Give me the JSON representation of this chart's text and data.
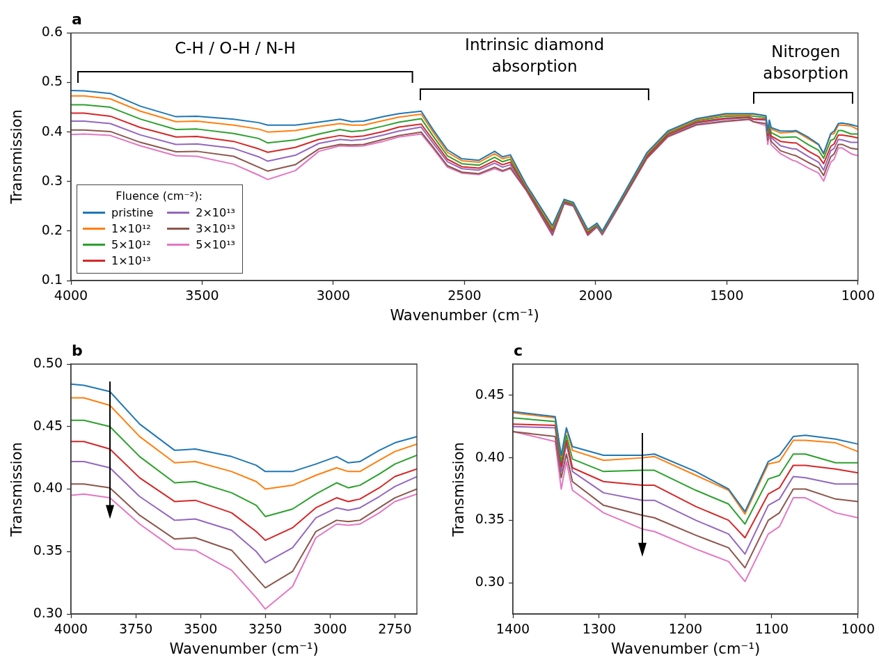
{
  "chart_data": [
    {
      "type": "line",
      "title": "a",
      "xlabel": "Wavenumber (cm⁻¹)",
      "ylabel": "Transmission",
      "legend": "bottom left",
      "legend_title": "Fluence (cm⁻²):",
      "xlim": [
        4000,
        1000
      ],
      "xticks": [
        4000,
        3500,
        3000,
        2500,
        2000,
        1500,
        1000
      ],
      "ylim": [
        0.1,
        0.6
      ],
      "yticks": [
        0.1,
        0.2,
        0.3,
        0.4,
        0.5,
        0.6
      ],
      "annotations": [
        "C-H / O-H / N-H",
        "Intrinsic diamond absorption",
        "Nitrogen absorption"
      ],
      "x": [
        4000,
        3950,
        3850,
        3735,
        3600,
        3520,
        3380,
        3285,
        3250,
        3145,
        3055,
        2975,
        2930,
        2885,
        2810,
        2750,
        2665,
        2620,
        2565,
        2510,
        2445,
        2385,
        2355,
        2325,
        2265,
        2165,
        2120,
        2085,
        2030,
        1995,
        1975,
        1905,
        1805,
        1725,
        1615,
        1505,
        1415,
        1400,
        1351,
        1344,
        1338,
        1331,
        1295,
        1250,
        1236,
        1188,
        1150,
        1131,
        1104,
        1091,
        1075,
        1061,
        1026,
        1000
      ],
      "series": [
        {
          "name": "pristine",
          "color": "#1f77b4",
          "values": [
            0.484,
            0.483,
            0.478,
            0.452,
            0.431,
            0.432,
            0.426,
            0.419,
            0.414,
            0.414,
            0.42,
            0.426,
            0.421,
            0.422,
            0.431,
            0.437,
            0.442,
            0.405,
            0.364,
            0.346,
            0.343,
            0.361,
            0.35,
            0.354,
            0.294,
            0.211,
            0.264,
            0.258,
            0.203,
            0.216,
            0.2,
            0.264,
            0.358,
            0.402,
            0.427,
            0.437,
            0.437,
            0.437,
            0.433,
            0.402,
            0.424,
            0.409,
            0.402,
            0.402,
            0.403,
            0.389,
            0.375,
            0.357,
            0.397,
            0.402,
            0.417,
            0.418,
            0.415,
            0.411
          ]
        },
        {
          "name": "1×10¹²",
          "color": "#ff7f0e",
          "values": [
            0.473,
            0.473,
            0.467,
            0.442,
            0.421,
            0.422,
            0.414,
            0.406,
            0.4,
            0.403,
            0.411,
            0.417,
            0.414,
            0.414,
            0.423,
            0.43,
            0.436,
            0.4,
            0.359,
            0.342,
            0.339,
            0.356,
            0.346,
            0.35,
            0.292,
            0.208,
            0.263,
            0.257,
            0.201,
            0.215,
            0.199,
            0.263,
            0.356,
            0.4,
            0.425,
            0.435,
            0.435,
            0.436,
            0.432,
            0.401,
            0.423,
            0.406,
            0.398,
            0.4,
            0.401,
            0.386,
            0.374,
            0.355,
            0.395,
            0.397,
            0.414,
            0.414,
            0.412,
            0.405
          ]
        },
        {
          "name": "5×10¹²",
          "color": "#2ca02c",
          "values": [
            0.455,
            0.455,
            0.45,
            0.426,
            0.405,
            0.406,
            0.397,
            0.387,
            0.378,
            0.384,
            0.396,
            0.405,
            0.401,
            0.403,
            0.412,
            0.42,
            0.427,
            0.392,
            0.352,
            0.336,
            0.333,
            0.349,
            0.34,
            0.345,
            0.29,
            0.204,
            0.261,
            0.255,
            0.199,
            0.213,
            0.197,
            0.261,
            0.354,
            0.398,
            0.423,
            0.432,
            0.433,
            0.432,
            0.429,
            0.397,
            0.418,
            0.399,
            0.389,
            0.39,
            0.39,
            0.374,
            0.363,
            0.347,
            0.383,
            0.386,
            0.403,
            0.403,
            0.396,
            0.396
          ]
        },
        {
          "name": "1×10¹³",
          "color": "#d62728",
          "values": [
            0.438,
            0.438,
            0.432,
            0.409,
            0.39,
            0.391,
            0.381,
            0.366,
            0.359,
            0.369,
            0.385,
            0.393,
            0.39,
            0.392,
            0.401,
            0.41,
            0.416,
            0.384,
            0.345,
            0.33,
            0.327,
            0.342,
            0.334,
            0.339,
            0.287,
            0.2,
            0.259,
            0.254,
            0.196,
            0.212,
            0.196,
            0.259,
            0.351,
            0.395,
            0.42,
            0.428,
            0.43,
            0.427,
            0.426,
            0.393,
            0.414,
            0.392,
            0.381,
            0.378,
            0.378,
            0.361,
            0.35,
            0.336,
            0.371,
            0.376,
            0.394,
            0.394,
            0.391,
            0.388
          ]
        },
        {
          "name": "2×10¹³",
          "color": "#9467bd",
          "values": [
            0.422,
            0.422,
            0.417,
            0.394,
            0.375,
            0.376,
            0.367,
            0.35,
            0.341,
            0.353,
            0.377,
            0.385,
            0.383,
            0.385,
            0.394,
            0.402,
            0.41,
            0.378,
            0.34,
            0.326,
            0.323,
            0.337,
            0.329,
            0.334,
            0.286,
            0.197,
            0.258,
            0.252,
            0.195,
            0.21,
            0.194,
            0.258,
            0.35,
            0.394,
            0.418,
            0.426,
            0.429,
            0.425,
            0.424,
            0.389,
            0.411,
            0.389,
            0.372,
            0.366,
            0.366,
            0.35,
            0.339,
            0.323,
            0.362,
            0.367,
            0.385,
            0.384,
            0.379,
            0.379
          ]
        },
        {
          "name": "3×10¹³",
          "color": "#8c564b",
          "values": [
            0.404,
            0.404,
            0.401,
            0.379,
            0.36,
            0.361,
            0.351,
            0.329,
            0.321,
            0.334,
            0.366,
            0.375,
            0.374,
            0.375,
            0.385,
            0.393,
            0.4,
            0.37,
            0.332,
            0.319,
            0.316,
            0.329,
            0.322,
            0.328,
            0.283,
            0.193,
            0.256,
            0.251,
            0.192,
            0.209,
            0.193,
            0.256,
            0.347,
            0.391,
            0.415,
            0.422,
            0.426,
            0.421,
            0.417,
            0.384,
            0.403,
            0.381,
            0.362,
            0.354,
            0.352,
            0.338,
            0.328,
            0.312,
            0.35,
            0.356,
            0.375,
            0.375,
            0.367,
            0.365
          ]
        },
        {
          "name": "5×10¹³",
          "color": "#e377c2",
          "values": [
            0.395,
            0.396,
            0.393,
            0.372,
            0.352,
            0.351,
            0.335,
            0.313,
            0.304,
            0.322,
            0.361,
            0.372,
            0.371,
            0.372,
            0.381,
            0.39,
            0.396,
            0.367,
            0.329,
            0.317,
            0.314,
            0.326,
            0.32,
            0.326,
            0.282,
            0.191,
            0.255,
            0.25,
            0.191,
            0.208,
            0.192,
            0.255,
            0.346,
            0.39,
            0.414,
            0.421,
            0.425,
            0.421,
            0.413,
            0.375,
            0.397,
            0.374,
            0.356,
            0.343,
            0.341,
            0.327,
            0.317,
            0.301,
            0.339,
            0.345,
            0.368,
            0.368,
            0.356,
            0.352
          ]
        }
      ]
    },
    {
      "type": "line",
      "title": "b",
      "xlabel": "Wavenumber (cm⁻¹)",
      "ylabel": "Transmission",
      "xlim": [
        4000,
        2665
      ],
      "xticks": [
        4000,
        3750,
        3500,
        3250,
        3000,
        2750
      ],
      "ylim": [
        0.3,
        0.5
      ],
      "yticks": [
        {
          "value": 0.3,
          "label": "0.30"
        },
        0.35,
        {
          "value": 0.4,
          "label": "0.40"
        },
        0.45,
        {
          "value": 0.5,
          "label": "0.50"
        }
      ],
      "x": [
        4000,
        3950,
        3850,
        3735,
        3600,
        3520,
        3380,
        3285,
        3250,
        3145,
        3055,
        2975,
        2930,
        2885,
        2810,
        2750,
        2665
      ],
      "series": [
        {
          "color": "#1f77b4",
          "values": [
            0.484,
            0.483,
            0.478,
            0.452,
            0.431,
            0.432,
            0.426,
            0.419,
            0.414,
            0.414,
            0.42,
            0.426,
            0.421,
            0.422,
            0.431,
            0.437,
            0.442
          ]
        },
        {
          "color": "#ff7f0e",
          "values": [
            0.473,
            0.473,
            0.467,
            0.442,
            0.421,
            0.422,
            0.414,
            0.406,
            0.4,
            0.403,
            0.411,
            0.417,
            0.414,
            0.414,
            0.423,
            0.43,
            0.436
          ]
        },
        {
          "color": "#2ca02c",
          "values": [
            0.455,
            0.455,
            0.45,
            0.426,
            0.405,
            0.406,
            0.397,
            0.387,
            0.378,
            0.384,
            0.396,
            0.405,
            0.401,
            0.403,
            0.412,
            0.42,
            0.427
          ]
        },
        {
          "color": "#d62728",
          "values": [
            0.438,
            0.438,
            0.432,
            0.409,
            0.39,
            0.391,
            0.381,
            0.366,
            0.359,
            0.369,
            0.385,
            0.393,
            0.39,
            0.392,
            0.401,
            0.41,
            0.416
          ]
        },
        {
          "color": "#9467bd",
          "values": [
            0.422,
            0.422,
            0.417,
            0.394,
            0.375,
            0.376,
            0.367,
            0.35,
            0.341,
            0.353,
            0.377,
            0.385,
            0.383,
            0.385,
            0.394,
            0.402,
            0.41
          ]
        },
        {
          "color": "#8c564b",
          "values": [
            0.404,
            0.404,
            0.401,
            0.379,
            0.36,
            0.361,
            0.351,
            0.329,
            0.321,
            0.334,
            0.366,
            0.375,
            0.374,
            0.375,
            0.385,
            0.393,
            0.4
          ]
        },
        {
          "color": "#e377c2",
          "values": [
            0.395,
            0.396,
            0.393,
            0.372,
            0.352,
            0.351,
            0.335,
            0.313,
            0.304,
            0.322,
            0.361,
            0.372,
            0.371,
            0.372,
            0.381,
            0.39,
            0.396
          ]
        }
      ]
    },
    {
      "type": "line",
      "title": "c",
      "xlabel": "Wavenumber (cm⁻¹)",
      "ylabel": "Transmission",
      "xlim": [
        1400,
        1000
      ],
      "xticks": [
        1400,
        1300,
        1200,
        1100,
        1000
      ],
      "ylim": [
        0.275,
        0.475
      ],
      "yticks": [
        {
          "value": 0.3,
          "label": "0.30"
        },
        0.35,
        {
          "value": 0.4,
          "label": "0.40"
        },
        0.45
      ],
      "x": [
        1400,
        1351,
        1344,
        1338,
        1331,
        1295,
        1250,
        1236,
        1188,
        1150,
        1131,
        1104,
        1091,
        1075,
        1061,
        1026,
        1000
      ],
      "series": [
        {
          "color": "#1f77b4",
          "values": [
            0.437,
            0.433,
            0.402,
            0.424,
            0.409,
            0.402,
            0.402,
            0.403,
            0.389,
            0.375,
            0.357,
            0.397,
            0.402,
            0.417,
            0.418,
            0.415,
            0.411
          ]
        },
        {
          "color": "#ff7f0e",
          "values": [
            0.436,
            0.432,
            0.401,
            0.423,
            0.406,
            0.398,
            0.4,
            0.401,
            0.386,
            0.374,
            0.355,
            0.395,
            0.397,
            0.414,
            0.414,
            0.412,
            0.405
          ]
        },
        {
          "color": "#2ca02c",
          "values": [
            0.432,
            0.429,
            0.397,
            0.418,
            0.399,
            0.389,
            0.39,
            0.39,
            0.374,
            0.363,
            0.347,
            0.383,
            0.386,
            0.403,
            0.403,
            0.396,
            0.396
          ]
        },
        {
          "color": "#d62728",
          "values": [
            0.427,
            0.426,
            0.393,
            0.414,
            0.392,
            0.381,
            0.378,
            0.378,
            0.361,
            0.35,
            0.336,
            0.371,
            0.376,
            0.394,
            0.394,
            0.391,
            0.388
          ]
        },
        {
          "color": "#9467bd",
          "values": [
            0.425,
            0.424,
            0.389,
            0.411,
            0.389,
            0.372,
            0.366,
            0.366,
            0.35,
            0.339,
            0.323,
            0.362,
            0.367,
            0.385,
            0.384,
            0.379,
            0.379
          ]
        },
        {
          "color": "#8c564b",
          "values": [
            0.421,
            0.417,
            0.384,
            0.403,
            0.381,
            0.362,
            0.354,
            0.352,
            0.338,
            0.328,
            0.312,
            0.35,
            0.356,
            0.375,
            0.375,
            0.367,
            0.365
          ]
        },
        {
          "color": "#e377c2",
          "values": [
            0.421,
            0.413,
            0.375,
            0.397,
            0.374,
            0.356,
            0.343,
            0.341,
            0.327,
            0.317,
            0.301,
            0.339,
            0.345,
            0.368,
            0.368,
            0.356,
            0.352
          ]
        }
      ]
    }
  ]
}
